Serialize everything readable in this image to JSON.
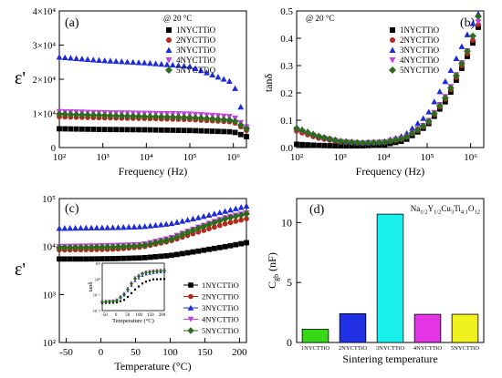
{
  "panels": {
    "a": {
      "label": "(a)",
      "temp_note": "@ 20 °C",
      "xlabel": "Frequency (Hz)",
      "ylabel": "ε'",
      "x_ticks": [
        "10²",
        "10³",
        "10⁴",
        "10⁵",
        "10⁶"
      ],
      "y_ticks": [
        "0",
        "1×10⁴",
        "2×10⁴",
        "3×10⁴",
        "4×10⁴"
      ]
    },
    "b": {
      "label": "(b)",
      "temp_note": "@ 20 °C",
      "xlabel": "Frequency (Hz)",
      "ylabel": "tanδ",
      "x_ticks": [
        "10²",
        "10³",
        "10⁴",
        "10⁵",
        "10⁶"
      ],
      "y_ticks": [
        "0.0",
        "0.1",
        "0.2",
        "0.3",
        "0.4",
        "0.5"
      ]
    },
    "c": {
      "label": "(c)",
      "xlabel": "Temperature (°C)",
      "ylabel": "ε'",
      "x_ticks": [
        "-50",
        "0",
        "50",
        "100",
        "150",
        "200"
      ],
      "y_ticks": [
        "10²",
        "10³",
        "10⁴",
        "10⁵"
      ],
      "inset": {
        "ylabel": "tanδ",
        "xlabel": "Temperature (°C)",
        "x_ticks": [
          "-50",
          "0",
          "50",
          "100",
          "150",
          "200"
        ],
        "y_ticks": [
          "10⁻²",
          "10⁻¹",
          "10⁰",
          "10¹"
        ]
      }
    },
    "d": {
      "label": "(d)",
      "xlabel": "Sintering temperature",
      "ylabel": "C_gb (nF)",
      "formula": "Na1/2Y1/2Cu3Ti4.1O12",
      "y_ticks": [
        "0",
        "5",
        "10"
      ]
    }
  },
  "legend_names": [
    "1NYCTTiO",
    "2NYCTTiO",
    "3NYCTTiO",
    "4NYCTTiO",
    "5NYCTTiO"
  ],
  "colors": [
    "#000000",
    "#b5281e",
    "#1f2bd6",
    "#c23fe0",
    "#2e6b1e"
  ],
  "bar_colors": [
    "#39d817",
    "#2131e6",
    "#19f0ee",
    "#e434e6",
    "#f0f01c"
  ],
  "chart_data": [
    {
      "type": "scatter",
      "title": "(a)",
      "xlabel": "Frequency (Hz)",
      "ylabel": "ε'",
      "xscale": "log",
      "xlim": [
        100,
        2000000
      ],
      "ylim": [
        0,
        40000
      ],
      "series": [
        {
          "name": "1NYCTTiO",
          "x": [
            100,
            1000,
            10000,
            100000,
            1000000,
            2000000
          ],
          "y": [
            5500,
            5300,
            5200,
            5000,
            4600,
            3200
          ]
        },
        {
          "name": "2NYCTTiO",
          "x": [
            100,
            1000,
            10000,
            100000,
            1000000,
            2000000
          ],
          "y": [
            9000,
            8700,
            8500,
            8200,
            7500,
            5000
          ]
        },
        {
          "name": "3NYCTTiO",
          "x": [
            100,
            1000,
            10000,
            100000,
            1000000,
            2000000
          ],
          "y": [
            26500,
            25500,
            24800,
            23800,
            19000,
            6500
          ]
        },
        {
          "name": "4NYCTTiO",
          "x": [
            100,
            1000,
            10000,
            100000,
            1000000,
            2000000
          ],
          "y": [
            10500,
            10200,
            10000,
            9800,
            9000,
            6000
          ]
        },
        {
          "name": "5NYCTTiO",
          "x": [
            100,
            1000,
            10000,
            100000,
            1000000,
            2000000
          ],
          "y": [
            9800,
            9400,
            9100,
            8800,
            8000,
            5500
          ]
        }
      ]
    },
    {
      "type": "scatter",
      "title": "(b)",
      "xlabel": "Frequency (Hz)",
      "ylabel": "tanδ",
      "xscale": "log",
      "xlim": [
        100,
        2000000
      ],
      "ylim": [
        0,
        0.5
      ],
      "series": [
        {
          "name": "1NYCTTiO",
          "x": [
            100,
            300,
            1000,
            3000,
            10000,
            30000,
            100000,
            300000,
            1000000,
            1500000
          ],
          "y": [
            0.012,
            0.008,
            0.006,
            0.006,
            0.01,
            0.025,
            0.08,
            0.18,
            0.36,
            0.44
          ]
        },
        {
          "name": "2NYCTTiO",
          "x": [
            100,
            300,
            1000,
            3000,
            10000,
            30000,
            100000,
            300000,
            1000000,
            1500000
          ],
          "y": [
            0.06,
            0.035,
            0.02,
            0.015,
            0.018,
            0.033,
            0.085,
            0.19,
            0.37,
            0.45
          ]
        },
        {
          "name": "3NYCTTiO",
          "x": [
            100,
            300,
            1000,
            3000,
            10000,
            30000,
            100000,
            300000,
            1000000,
            1500000
          ],
          "y": [
            0.075,
            0.045,
            0.025,
            0.018,
            0.022,
            0.045,
            0.12,
            0.26,
            0.44,
            0.49
          ]
        },
        {
          "name": "4NYCTTiO",
          "x": [
            100,
            300,
            1000,
            3000,
            10000,
            30000,
            100000,
            300000,
            1000000,
            1500000
          ],
          "y": [
            0.065,
            0.04,
            0.022,
            0.016,
            0.02,
            0.036,
            0.09,
            0.2,
            0.38,
            0.46
          ]
        },
        {
          "name": "5NYCTTiO",
          "x": [
            100,
            300,
            1000,
            3000,
            10000,
            30000,
            100000,
            300000,
            1000000,
            1500000
          ],
          "y": [
            0.07,
            0.042,
            0.023,
            0.017,
            0.019,
            0.034,
            0.088,
            0.195,
            0.38,
            0.48
          ]
        }
      ]
    },
    {
      "type": "scatter",
      "title": "(c)",
      "xlabel": "Temperature (°C)",
      "ylabel": "ε'",
      "yscale": "log",
      "xlim": [
        -60,
        210
      ],
      "ylim": [
        100,
        100000
      ],
      "series": [
        {
          "name": "1NYCTTiO",
          "x": [
            -60,
            -20,
            20,
            60,
            100,
            140,
            180,
            210
          ],
          "y": [
            5500,
            5500,
            5600,
            5800,
            6500,
            8000,
            10000,
            12000
          ]
        },
        {
          "name": "2NYCTTiO",
          "x": [
            -60,
            -20,
            20,
            60,
            100,
            140,
            180,
            210
          ],
          "y": [
            8500,
            8600,
            8800,
            9800,
            13000,
            20000,
            30000,
            38000
          ]
        },
        {
          "name": "3NYCTTiO",
          "x": [
            -60,
            -20,
            20,
            60,
            100,
            140,
            180,
            210
          ],
          "y": [
            24000,
            24500,
            25000,
            26000,
            30000,
            40000,
            55000,
            70000
          ]
        },
        {
          "name": "4NYCTTiO",
          "x": [
            -60,
            -20,
            20,
            60,
            100,
            140,
            180,
            210
          ],
          "y": [
            10000,
            10200,
            10500,
            11000,
            15000,
            25000,
            40000,
            50000
          ]
        },
        {
          "name": "5NYCTTiO",
          "x": [
            -60,
            -20,
            20,
            60,
            100,
            140,
            180,
            210
          ],
          "y": [
            9500,
            9600,
            9800,
            10500,
            14000,
            24000,
            38000,
            48000
          ]
        }
      ]
    },
    {
      "type": "bar",
      "title": "(d)",
      "xlabel": "Sintering temperature",
      "ylabel": "C_gb (nF)",
      "ylim": [
        0,
        12
      ],
      "categories": [
        "1NYCTTiO",
        "2NYCTTiO",
        "3NYCTTiO",
        "4NYCTTiO",
        "5NYCTTiO"
      ],
      "values": [
        1.1,
        2.4,
        10.7,
        2.35,
        2.35
      ]
    }
  ]
}
